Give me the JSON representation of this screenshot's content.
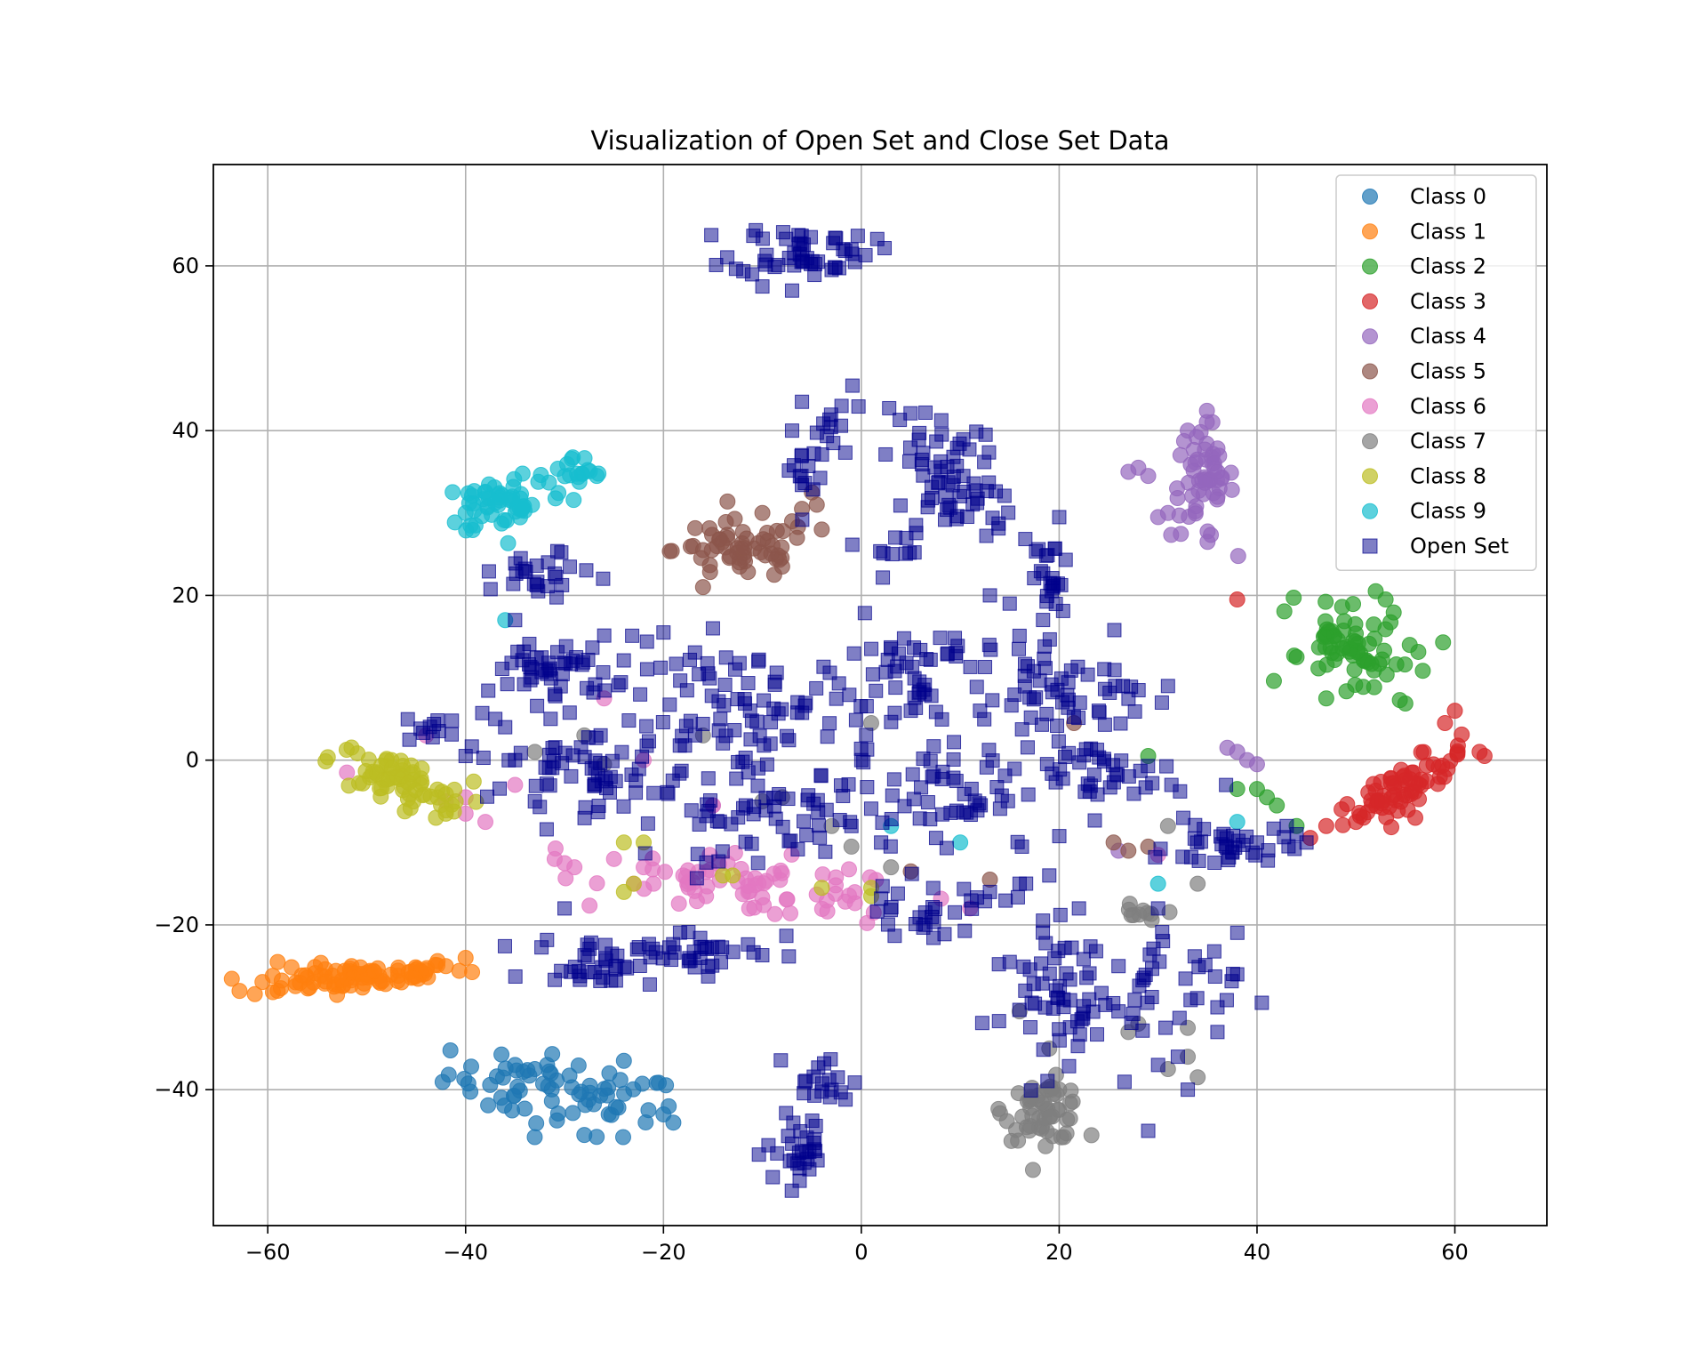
{
  "chart_data": {
    "type": "scatter",
    "title": "Visualization of Open Set and Close Set Data",
    "xlabel": "",
    "ylabel": "",
    "xlim": [
      -65.5,
      69.3
    ],
    "ylim": [
      -56.5,
      72.3
    ],
    "xticks": [
      -60,
      -40,
      -20,
      0,
      20,
      40,
      60
    ],
    "yticks": [
      -40,
      -20,
      0,
      20,
      40,
      60
    ],
    "xtick_labels": [
      "−60",
      "−40",
      "−20",
      "0",
      "20",
      "40",
      "60"
    ],
    "ytick_labels": [
      "−40",
      "−20",
      "0",
      "20",
      "40",
      "60"
    ],
    "grid": true,
    "legend_position": "top-right",
    "series": [
      {
        "name": "Class 0",
        "color": "#1f77b4",
        "marker": "circle",
        "clusters": [
          {
            "cx": -30,
            "cy": -40.5,
            "sx": 6,
            "sy": 2.2,
            "n": 70,
            "angle": -12
          }
        ],
        "points": [
          [
            -35,
            -37
          ],
          [
            -33,
            -37.5
          ],
          [
            -24,
            -36.5
          ],
          [
            -20,
            -43
          ],
          [
            -19,
            -44
          ],
          [
            -28,
            -45.5
          ]
        ]
      },
      {
        "name": "Class 1",
        "color": "#ff7f0e",
        "marker": "circle",
        "clusters": [
          {
            "cx": -51,
            "cy": -26.3,
            "sx": 5.5,
            "sy": 0.8,
            "n": 90,
            "angle": 5
          }
        ],
        "points": [
          [
            -59,
            -24.5
          ],
          [
            -59,
            -28
          ],
          [
            -42,
            -25
          ],
          [
            -40,
            -24
          ],
          [
            -44,
            -25.5
          ],
          [
            -53,
            -28.5
          ]
        ]
      },
      {
        "name": "Class 2",
        "color": "#2ca02c",
        "marker": "circle",
        "clusters": [
          {
            "cx": 49.5,
            "cy": 13.5,
            "sx": 2.2,
            "sy": 3.6,
            "n": 70,
            "angle": 55
          }
        ],
        "points": [
          [
            44,
            12.5
          ],
          [
            52,
            20.5
          ],
          [
            53,
            19.5
          ],
          [
            47,
            7.5
          ],
          [
            40,
            -3.5
          ],
          [
            41,
            -4.5
          ],
          [
            42,
            -5.5
          ],
          [
            38,
            -3.5
          ],
          [
            44,
            -8
          ],
          [
            29,
            0.5
          ]
        ]
      },
      {
        "name": "Class 3",
        "color": "#d62728",
        "marker": "circle",
        "clusters": [
          {
            "cx": 55,
            "cy": -3,
            "sx": 4,
            "sy": 1.0,
            "n": 70,
            "angle": 35
          }
        ],
        "points": [
          [
            47,
            -8
          ],
          [
            50,
            -7.5
          ],
          [
            60,
            6
          ],
          [
            59,
            4.5
          ],
          [
            62.5,
            1
          ],
          [
            63,
            0.5
          ],
          [
            56,
            -7
          ],
          [
            38,
            19.5
          ]
        ]
      },
      {
        "name": "Class 4",
        "color": "#9467bd",
        "marker": "circle",
        "clusters": [
          {
            "cx": 34.5,
            "cy": 34,
            "sx": 1.6,
            "sy": 3.6,
            "n": 55,
            "angle": 0
          }
        ],
        "points": [
          [
            27,
            35
          ],
          [
            28,
            35.5
          ],
          [
            29,
            34.5
          ],
          [
            31,
            30
          ],
          [
            30,
            29.5
          ],
          [
            33,
            40
          ],
          [
            37,
            1.5
          ],
          [
            38,
            1
          ],
          [
            39,
            0
          ],
          [
            40,
            -0.5
          ],
          [
            36,
            35
          ],
          [
            35,
            26.5
          ],
          [
            26,
            -11
          ],
          [
            -15,
            -5.5
          ]
        ]
      },
      {
        "name": "Class 5",
        "color": "#8c564b",
        "marker": "circle",
        "clusters": [
          {
            "cx": -12,
            "cy": 25.5,
            "sx": 3.5,
            "sy": 1.8,
            "n": 55,
            "angle": 0
          }
        ],
        "points": [
          [
            -5,
            32.5
          ],
          [
            -4.5,
            31
          ],
          [
            -6,
            30.5
          ],
          [
            -7,
            29
          ],
          [
            -4,
            28
          ],
          [
            -10,
            30
          ],
          [
            -16,
            25.5
          ],
          [
            -17,
            26
          ],
          [
            -16,
            21
          ],
          [
            -8,
            23.5
          ],
          [
            21.5,
            4.5
          ],
          [
            25.5,
            -10
          ],
          [
            27,
            -11
          ],
          [
            13,
            -14.5
          ],
          [
            5,
            -13.5
          ],
          [
            29,
            -10.5
          ]
        ]
      },
      {
        "name": "Class 6",
        "color": "#e377c2",
        "marker": "circle",
        "clusters": [
          {
            "cx": -10,
            "cy": -15.5,
            "sx": 7.5,
            "sy": 1.8,
            "n": 70,
            "angle": -8
          }
        ],
        "points": [
          [
            -52,
            -1.5
          ],
          [
            -44,
            3
          ],
          [
            -40,
            -4.5
          ],
          [
            -40,
            -6.5
          ],
          [
            -42,
            -5
          ],
          [
            -38,
            -7.5
          ],
          [
            -35,
            -3
          ],
          [
            -30,
            -12.5
          ],
          [
            -29,
            -13
          ],
          [
            -31,
            -12
          ],
          [
            -26,
            7.5
          ],
          [
            -22,
            -13
          ],
          [
            -22,
            0
          ],
          [
            -23,
            -15
          ],
          [
            -25,
            -12
          ],
          [
            -21,
            -15
          ],
          [
            -18,
            -14
          ],
          [
            -15,
            -5.5
          ],
          [
            11,
            -18
          ],
          [
            30,
            -11.5
          ]
        ]
      },
      {
        "name": "Class 7",
        "color": "#7f7f7f",
        "marker": "circle",
        "clusters": [
          {
            "cx": 18.5,
            "cy": -42.5,
            "sx": 2.0,
            "sy": 1.8,
            "n": 55,
            "angle": 0
          },
          {
            "cx": 28,
            "cy": -19,
            "sx": 1.0,
            "sy": 0.7,
            "n": 10,
            "angle": 0
          }
        ],
        "points": [
          [
            -28,
            3
          ],
          [
            -26,
            -0.5
          ],
          [
            -33,
            1
          ],
          [
            -16,
            3
          ],
          [
            -8,
            -4.5
          ],
          [
            -10,
            -5
          ],
          [
            -3,
            -8
          ],
          [
            1,
            4.5
          ],
          [
            -1,
            -10.5
          ],
          [
            3,
            -13
          ],
          [
            16,
            -30.5
          ],
          [
            19,
            -35
          ],
          [
            20,
            -40
          ],
          [
            27,
            -33
          ],
          [
            28,
            -32
          ],
          [
            31,
            -37.5
          ],
          [
            33,
            -36
          ],
          [
            33,
            -32.5
          ],
          [
            34,
            -38.5
          ],
          [
            34,
            -15
          ],
          [
            31,
            -8
          ]
        ]
      },
      {
        "name": "Class 8",
        "color": "#bcbd22",
        "marker": "circle",
        "clusters": [
          {
            "cx": -47,
            "cy": -2.5,
            "sx": 3.6,
            "sy": 1.4,
            "n": 70,
            "angle": -22
          }
        ],
        "points": [
          [
            -43,
            -7
          ],
          [
            -42,
            -6.5
          ],
          [
            -41,
            -5
          ],
          [
            -24,
            -10
          ],
          [
            -22,
            -10
          ],
          [
            -23,
            -15
          ],
          [
            -24,
            -16
          ],
          [
            -13,
            -14
          ],
          [
            -14,
            -14
          ],
          [
            -4,
            -15.5
          ],
          [
            1,
            -15.5
          ],
          [
            1,
            -16.5
          ]
        ]
      },
      {
        "name": "Class 9",
        "color": "#17becf",
        "marker": "circle",
        "clusters": [
          {
            "cx": -36,
            "cy": 31.5,
            "sx": 3.2,
            "sy": 1.8,
            "n": 55,
            "angle": 10
          },
          {
            "cx": -29,
            "cy": 34.5,
            "sx": 1.8,
            "sy": 1.2,
            "n": 18,
            "angle": 0
          }
        ],
        "points": [
          [
            -36,
            17
          ],
          [
            -40,
            30
          ],
          [
            -39,
            28.5
          ],
          [
            10,
            -10
          ],
          [
            30,
            -15
          ],
          [
            38,
            -7.5
          ],
          [
            3,
            -8
          ]
        ]
      },
      {
        "name": "Open Set",
        "color": "#00008b",
        "marker": "square",
        "clusters": [
          {
            "cx": -6,
            "cy": 62,
            "sx": 3.5,
            "sy": 1.6,
            "n": 50,
            "angle": 0
          },
          {
            "cx": -5,
            "cy": 37,
            "sx": 1.5,
            "sy": 4,
            "n": 25,
            "angle": -20
          },
          {
            "cx": 7,
            "cy": 36,
            "sx": 2.5,
            "sy": 3.5,
            "n": 40,
            "angle": 0
          },
          {
            "cx": 11,
            "cy": 32,
            "sx": 2.0,
            "sy": 3,
            "n": 25,
            "angle": 0
          },
          {
            "cx": 3,
            "cy": 25.5,
            "sx": 1.8,
            "sy": 1.5,
            "n": 12,
            "angle": 0
          },
          {
            "cx": 19,
            "cy": 22,
            "sx": 1.2,
            "sy": 3.5,
            "n": 25,
            "angle": 0
          },
          {
            "cx": -32,
            "cy": 22,
            "sx": 2.5,
            "sy": 1.6,
            "n": 25,
            "angle": 15
          },
          {
            "cx": -31,
            "cy": 11,
            "sx": 3,
            "sy": 2,
            "n": 45,
            "angle": 0
          },
          {
            "cx": -43,
            "cy": 4,
            "sx": 1.5,
            "sy": 0.8,
            "n": 10,
            "angle": 0
          },
          {
            "cx": -28,
            "cy": -1,
            "sx": 6,
            "sy": 2.5,
            "n": 60,
            "angle": -8
          },
          {
            "cx": -12,
            "cy": 5,
            "sx": 7,
            "sy": 4.5,
            "n": 90,
            "angle": 0
          },
          {
            "cx": -9,
            "cy": -7,
            "sx": 6,
            "sy": 2.5,
            "n": 50,
            "angle": 0
          },
          {
            "cx": 8,
            "cy": 10,
            "sx": 7,
            "sy": 3.5,
            "n": 70,
            "angle": 0
          },
          {
            "cx": 21,
            "cy": 8,
            "sx": 4,
            "sy": 3,
            "n": 35,
            "angle": 0
          },
          {
            "cx": 10,
            "cy": -5,
            "sx": 6,
            "sy": 4,
            "n": 60,
            "angle": 0
          },
          {
            "cx": 25,
            "cy": -2,
            "sx": 4,
            "sy": 2.5,
            "n": 35,
            "angle": 0
          },
          {
            "cx": 37,
            "cy": -10.5,
            "sx": 3,
            "sy": 1.4,
            "n": 35,
            "angle": 0
          },
          {
            "cx": 7,
            "cy": -18,
            "sx": 4,
            "sy": 1.6,
            "n": 30,
            "angle": 0
          },
          {
            "cx": -27,
            "cy": -24.5,
            "sx": 3,
            "sy": 1.5,
            "n": 35,
            "angle": 0
          },
          {
            "cx": -16,
            "cy": -23,
            "sx": 4,
            "sy": 1.4,
            "n": 35,
            "angle": 0
          },
          {
            "cx": 19,
            "cy": -30,
            "sx": 3,
            "sy": 5,
            "n": 55,
            "angle": 15
          },
          {
            "cx": 30,
            "cy": -28,
            "sx": 4,
            "sy": 3.5,
            "n": 35,
            "angle": 0
          },
          {
            "cx": -4,
            "cy": -39,
            "sx": 1.6,
            "sy": 1.6,
            "n": 18,
            "angle": 0
          },
          {
            "cx": -6,
            "cy": -47.5,
            "sx": 1.8,
            "sy": 2.2,
            "n": 30,
            "angle": 0
          }
        ],
        "points": [
          [
            -1,
            62
          ],
          [
            -3,
            59.5
          ],
          [
            -10,
            57.5
          ],
          [
            -7,
            57
          ],
          [
            -2,
            43
          ],
          [
            -7,
            40
          ],
          [
            -6,
            43.5
          ],
          [
            3,
            13.5
          ],
          [
            -20,
            15.5
          ],
          [
            -15,
            16
          ],
          [
            -21,
            -4
          ],
          [
            -40,
            0.5
          ],
          [
            -36,
            4
          ],
          [
            -35,
            0
          ],
          [
            -30,
            -18
          ],
          [
            -33,
            -5
          ],
          [
            -31,
            8
          ],
          [
            -35,
            17
          ],
          [
            -37,
            5
          ],
          [
            22,
            -18
          ],
          [
            15,
            -24.5
          ],
          [
            26,
            -25
          ],
          [
            26,
            -30.5
          ],
          [
            29,
            -45
          ],
          [
            30,
            -37
          ],
          [
            32,
            -36
          ],
          [
            33,
            -40
          ],
          [
            36,
            -30
          ],
          [
            36,
            -33
          ],
          [
            38,
            -26
          ],
          [
            30,
            -18
          ],
          [
            31,
            9
          ],
          [
            24,
            6
          ],
          [
            13,
            20
          ],
          [
            15,
            19
          ],
          [
            12,
            6
          ],
          [
            5,
            6
          ],
          [
            0,
            0
          ],
          [
            -1,
            -8
          ],
          [
            2,
            -10
          ],
          [
            13,
            -16
          ],
          [
            16,
            -15
          ],
          [
            19,
            -14
          ],
          [
            40,
            -10
          ],
          [
            43,
            -8
          ],
          [
            44,
            -9
          ],
          [
            45,
            -10
          ]
        ]
      }
    ]
  }
}
